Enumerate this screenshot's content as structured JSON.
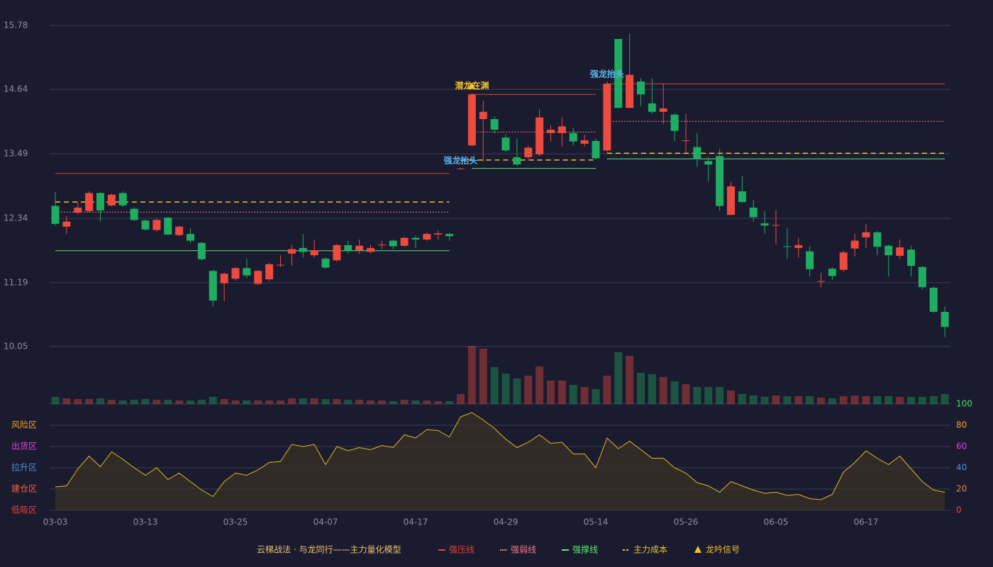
{
  "chart_data": {
    "type": "candlestick",
    "categories": [
      "03-03",
      null,
      null,
      null,
      null,
      null,
      null,
      null,
      "03-13",
      null,
      null,
      null,
      null,
      null,
      null,
      null,
      "03-25",
      null,
      null,
      null,
      null,
      null,
      null,
      null,
      "04-07",
      null,
      null,
      null,
      null,
      null,
      null,
      null,
      "04-17",
      null,
      null,
      null,
      null,
      null,
      null,
      null,
      "04-29",
      null,
      null,
      null,
      null,
      null,
      null,
      null,
      "05-14",
      null,
      null,
      null,
      null,
      null,
      null,
      null,
      "05-26",
      null,
      null,
      null,
      null,
      null,
      null,
      null,
      "06-05",
      null,
      null,
      null,
      null,
      null,
      null,
      null,
      "06-17",
      null,
      null,
      null,
      null,
      null,
      null,
      null
    ],
    "open": [
      12.56,
      12.19,
      12.44,
      12.47,
      12.79,
      12.57,
      12.79,
      12.51,
      12.3,
      12.13,
      12.35,
      12.04,
      12.06,
      11.9,
      11.4,
      11.18,
      11.26,
      11.45,
      11.17,
      11.25,
      11.5,
      11.71,
      11.81,
      11.68,
      11.62,
      11.59,
      11.86,
      11.77,
      11.74,
      11.86,
      11.94,
      11.85,
      11.99,
      11.96,
      12.05,
      12.06,
      13.22,
      13.64,
      14.11,
      14.11,
      13.78,
      13.43,
      13.43,
      13.48,
      13.86,
      13.86,
      13.86,
      13.67,
      13.72,
      13.55,
      15.54,
      14.31,
      14.78,
      14.39,
      14.24,
      14.19,
      13.72,
      13.61,
      13.36,
      13.45,
      12.4,
      12.82,
      12.53,
      12.25,
      12.21,
      11.84,
      11.81,
      11.75,
      11.21,
      11.44,
      11.42,
      11.8,
      12.0,
      12.09,
      11.85,
      11.67,
      11.78,
      11.47,
      11.1,
      10.67
    ],
    "high": [
      12.81,
      12.38,
      12.63,
      12.82,
      12.81,
      12.78,
      12.82,
      12.54,
      12.32,
      12.33,
      12.37,
      12.21,
      12.16,
      11.92,
      11.42,
      11.37,
      11.47,
      11.62,
      11.42,
      11.54,
      11.68,
      11.87,
      12.06,
      11.96,
      11.64,
      11.88,
      11.94,
      11.96,
      11.87,
      11.94,
      11.96,
      12.01,
      12.03,
      12.08,
      12.12,
      12.08,
      13.24,
      14.57,
      14.44,
      14.15,
      13.83,
      13.77,
      13.64,
      14.28,
      14.0,
      14.15,
      13.96,
      13.83,
      13.76,
      14.78,
      15.54,
      15.64,
      14.84,
      14.84,
      14.74,
      14.21,
      14.21,
      13.86,
      13.43,
      13.58,
      12.99,
      13.1,
      12.67,
      12.47,
      12.49,
      12.16,
      11.99,
      11.84,
      11.37,
      11.47,
      11.76,
      12.06,
      12.24,
      12.11,
      11.87,
      11.96,
      11.85,
      11.49,
      11.12,
      10.77
    ],
    "low": [
      12.21,
      12.06,
      12.41,
      12.44,
      12.28,
      12.55,
      12.54,
      12.29,
      12.12,
      12.1,
      12.04,
      12.02,
      11.9,
      11.59,
      10.77,
      10.86,
      11.23,
      11.28,
      11.15,
      11.22,
      11.47,
      11.49,
      11.64,
      11.64,
      11.44,
      11.56,
      11.71,
      11.71,
      11.71,
      11.79,
      11.79,
      11.83,
      11.81,
      11.94,
      11.96,
      11.94,
      13.21,
      13.63,
      13.35,
      13.86,
      13.52,
      13.27,
      13.4,
      13.45,
      13.71,
      13.62,
      13.64,
      13.62,
      13.39,
      13.52,
      14.31,
      14.31,
      14.34,
      14.21,
      14.02,
      13.71,
      13.52,
      13.26,
      12.99,
      12.47,
      12.4,
      12.61,
      12.28,
      12.06,
      11.87,
      11.61,
      11.64,
      11.3,
      11.11,
      11.24,
      11.39,
      11.66,
      11.81,
      11.68,
      11.3,
      11.61,
      11.3,
      11.07,
      10.65,
      10.22
    ],
    "close": [
      12.24,
      12.28,
      12.53,
      12.79,
      12.48,
      12.76,
      12.57,
      12.31,
      12.14,
      12.31,
      12.05,
      12.19,
      11.94,
      11.61,
      10.87,
      11.35,
      11.45,
      11.32,
      11.4,
      11.52,
      11.51,
      11.79,
      11.74,
      11.77,
      11.46,
      11.86,
      11.77,
      11.85,
      11.81,
      11.87,
      11.84,
      11.99,
      11.96,
      12.06,
      12.07,
      12.02,
      13.23,
      14.55,
      14.24,
      13.92,
      13.55,
      13.3,
      13.6,
      14.14,
      13.92,
      13.98,
      13.71,
      13.73,
      13.41,
      14.74,
      14.31,
      14.9,
      14.55,
      14.24,
      14.3,
      13.9,
      13.73,
      13.4,
      13.3,
      12.56,
      12.91,
      12.63,
      12.36,
      12.21,
      12.22,
      11.83,
      11.86,
      11.43,
      11.22,
      11.31,
      11.73,
      11.94,
      12.09,
      11.83,
      11.68,
      11.82,
      11.49,
      11.11,
      10.67,
      10.4
    ],
    "volume": [
      10,
      8,
      7,
      7,
      8,
      6,
      5,
      6,
      7,
      6,
      6,
      5,
      5,
      6,
      10,
      7,
      5,
      5,
      5,
      5,
      5,
      8,
      8,
      8,
      7,
      7,
      6,
      6,
      5,
      5,
      4,
      6,
      5,
      5,
      4,
      4,
      14,
      82,
      78,
      52,
      43,
      36,
      40,
      53,
      33,
      33,
      27,
      24,
      21,
      40,
      73,
      68,
      44,
      42,
      38,
      32,
      28,
      24,
      24,
      24,
      19,
      14,
      12,
      10,
      12,
      11,
      11,
      11,
      9,
      8,
      11,
      12,
      11,
      11,
      11,
      10,
      10,
      10,
      11,
      14
    ],
    "up_color": "#ee4a3e",
    "down_color": "#1fad62",
    "ylim": [
      10.05,
      15.78
    ],
    "yticks": [
      15.78,
      14.64,
      13.49,
      12.34,
      11.19,
      10.05
    ],
    "grid": true,
    "levels": [
      {
        "name": "强压线",
        "color": "#e0403a",
        "style": "solid",
        "values": [
          13.14,
          13.14,
          13.14,
          13.14,
          13.14,
          13.14,
          13.14,
          13.14,
          13.14,
          13.14,
          13.14,
          13.14,
          13.14,
          13.14,
          13.14,
          13.14,
          13.14,
          13.14,
          13.14,
          13.14,
          13.14,
          13.14,
          13.14,
          13.14,
          13.14,
          13.14,
          13.14,
          13.14,
          13.14,
          13.14,
          13.14,
          13.14,
          13.14,
          13.14,
          13.14,
          13.14,
          null,
          14.55,
          14.55,
          14.55,
          14.55,
          14.55,
          14.55,
          14.55,
          14.55,
          14.55,
          14.55,
          14.55,
          14.55,
          14.74,
          14.74,
          14.74,
          14.74,
          14.74,
          14.74,
          14.74,
          14.74,
          14.74,
          14.74,
          14.74,
          14.74,
          14.74,
          14.74,
          14.74,
          14.74,
          14.74,
          14.74,
          14.74,
          14.74,
          14.74,
          14.74,
          14.74,
          14.74,
          14.74,
          14.74,
          14.74,
          14.74,
          14.74,
          14.74,
          14.74
        ]
      },
      {
        "name": "强弱线",
        "color": "#f07a8a",
        "style": "dotted",
        "values": [
          12.45,
          12.45,
          12.45,
          12.45,
          12.45,
          12.45,
          12.45,
          12.45,
          12.45,
          12.45,
          12.45,
          12.45,
          12.45,
          12.45,
          12.45,
          12.45,
          12.45,
          12.45,
          12.45,
          12.45,
          12.45,
          12.45,
          12.45,
          12.45,
          12.45,
          12.45,
          12.45,
          12.45,
          12.45,
          12.45,
          12.45,
          12.45,
          12.45,
          12.45,
          12.45,
          12.45,
          null,
          13.88,
          13.88,
          13.88,
          13.88,
          13.88,
          13.88,
          13.88,
          13.88,
          13.88,
          13.88,
          13.88,
          13.88,
          14.07,
          14.07,
          14.07,
          14.07,
          14.07,
          14.07,
          14.07,
          14.07,
          14.07,
          14.07,
          14.07,
          14.07,
          14.07,
          14.07,
          14.07,
          14.07,
          14.07,
          14.07,
          14.07,
          14.07,
          14.07,
          14.07,
          14.07,
          14.07,
          14.07,
          14.07,
          14.07,
          14.07,
          14.07,
          14.07,
          14.07
        ]
      },
      {
        "name": "强撑线",
        "color": "#5ee870",
        "style": "solid",
        "values": [
          11.76,
          11.76,
          11.76,
          11.76,
          11.76,
          11.76,
          11.76,
          11.76,
          11.76,
          11.76,
          11.76,
          11.76,
          11.76,
          11.76,
          11.76,
          11.76,
          11.76,
          11.76,
          11.76,
          11.76,
          11.76,
          11.76,
          11.76,
          11.76,
          11.76,
          11.76,
          11.76,
          11.76,
          11.76,
          11.76,
          11.76,
          11.76,
          11.76,
          11.76,
          11.76,
          11.76,
          null,
          13.23,
          13.23,
          13.23,
          13.23,
          13.23,
          13.23,
          13.23,
          13.23,
          13.23,
          13.23,
          13.23,
          13.23,
          13.4,
          13.4,
          13.4,
          13.4,
          13.4,
          13.4,
          13.4,
          13.4,
          13.4,
          13.4,
          13.4,
          13.4,
          13.4,
          13.4,
          13.4,
          13.4,
          13.4,
          13.4,
          13.4,
          13.4,
          13.4,
          13.4,
          13.4,
          13.4,
          13.4,
          13.4,
          13.4,
          13.4,
          13.4,
          13.4,
          13.4
        ]
      },
      {
        "name": "主力成本",
        "color": "#f0c030",
        "style": "dashed",
        "values": [
          12.63,
          12.63,
          12.63,
          12.63,
          12.63,
          12.63,
          12.63,
          12.63,
          12.63,
          12.63,
          12.63,
          12.63,
          12.63,
          12.63,
          12.63,
          12.63,
          12.63,
          12.63,
          12.63,
          12.63,
          12.63,
          12.63,
          12.63,
          12.63,
          12.63,
          12.63,
          12.63,
          12.63,
          12.63,
          12.63,
          12.63,
          12.63,
          12.63,
          12.63,
          12.63,
          12.63,
          13.38,
          13.38,
          13.38,
          13.38,
          13.38,
          13.38,
          13.38,
          13.38,
          13.38,
          13.38,
          13.38,
          13.38,
          13.38,
          13.5,
          13.5,
          13.5,
          13.5,
          13.5,
          13.5,
          13.5,
          13.5,
          13.5,
          13.5,
          13.5,
          13.5,
          13.5,
          13.5,
          13.5,
          13.5,
          13.5,
          13.5,
          13.5,
          13.5,
          13.5,
          13.5,
          13.5,
          13.5,
          13.5,
          13.5,
          13.5,
          13.5,
          13.5,
          13.5,
          13.5
        ]
      }
    ],
    "signals": {
      "name": "龙吟信号",
      "color": "#f0c030",
      "marks": [
        {
          "index": 36,
          "text": "强龙抬头",
          "color": "#5ab4f0"
        },
        {
          "index": 37,
          "text": "潜龙在渊",
          "color": "#f0c030"
        },
        {
          "index": 49,
          "text": "强龙抬头",
          "color": "#5ab4f0"
        }
      ]
    },
    "oscillator": {
      "values": [
        22,
        23,
        39,
        51,
        41,
        55,
        48,
        40,
        33,
        40,
        29,
        35,
        27,
        19,
        13,
        27,
        35,
        33,
        38,
        45,
        46,
        62,
        60,
        62,
        43,
        60,
        56,
        59,
        57,
        61,
        59,
        71,
        68,
        76,
        75,
        69,
        88,
        92,
        85,
        77,
        67,
        59,
        64,
        71,
        63,
        64,
        53,
        53,
        40,
        68,
        58,
        65,
        57,
        49,
        49,
        40,
        35,
        26,
        23,
        17,
        27,
        23,
        19,
        16,
        17,
        14,
        15,
        11,
        10,
        15,
        36,
        45,
        56,
        49,
        43,
        51,
        39,
        27,
        19,
        17
      ],
      "color": "#e0b820",
      "ylim": [
        0,
        100
      ],
      "yticks": [
        100,
        80,
        60,
        40,
        20,
        0
      ],
      "ytick_colors": [
        "#3ee060",
        "#f0a030",
        "#e040e0",
        "#4a90e0",
        "#f08040",
        "#f04040"
      ],
      "zones": [
        {
          "label": "风险区",
          "value": 80,
          "color": "#f0a030"
        },
        {
          "label": "出货区",
          "value": 60,
          "color": "#e040e0"
        },
        {
          "label": "拉升区",
          "value": 40,
          "color": "#4a90e0"
        },
        {
          "label": "建仓区",
          "value": 20,
          "color": "#f06040"
        },
        {
          "label": "低吸区",
          "value": 0,
          "color": "#f04040"
        }
      ]
    },
    "legend_title": "云梯战法 · 与龙同行——主力量化模型"
  }
}
